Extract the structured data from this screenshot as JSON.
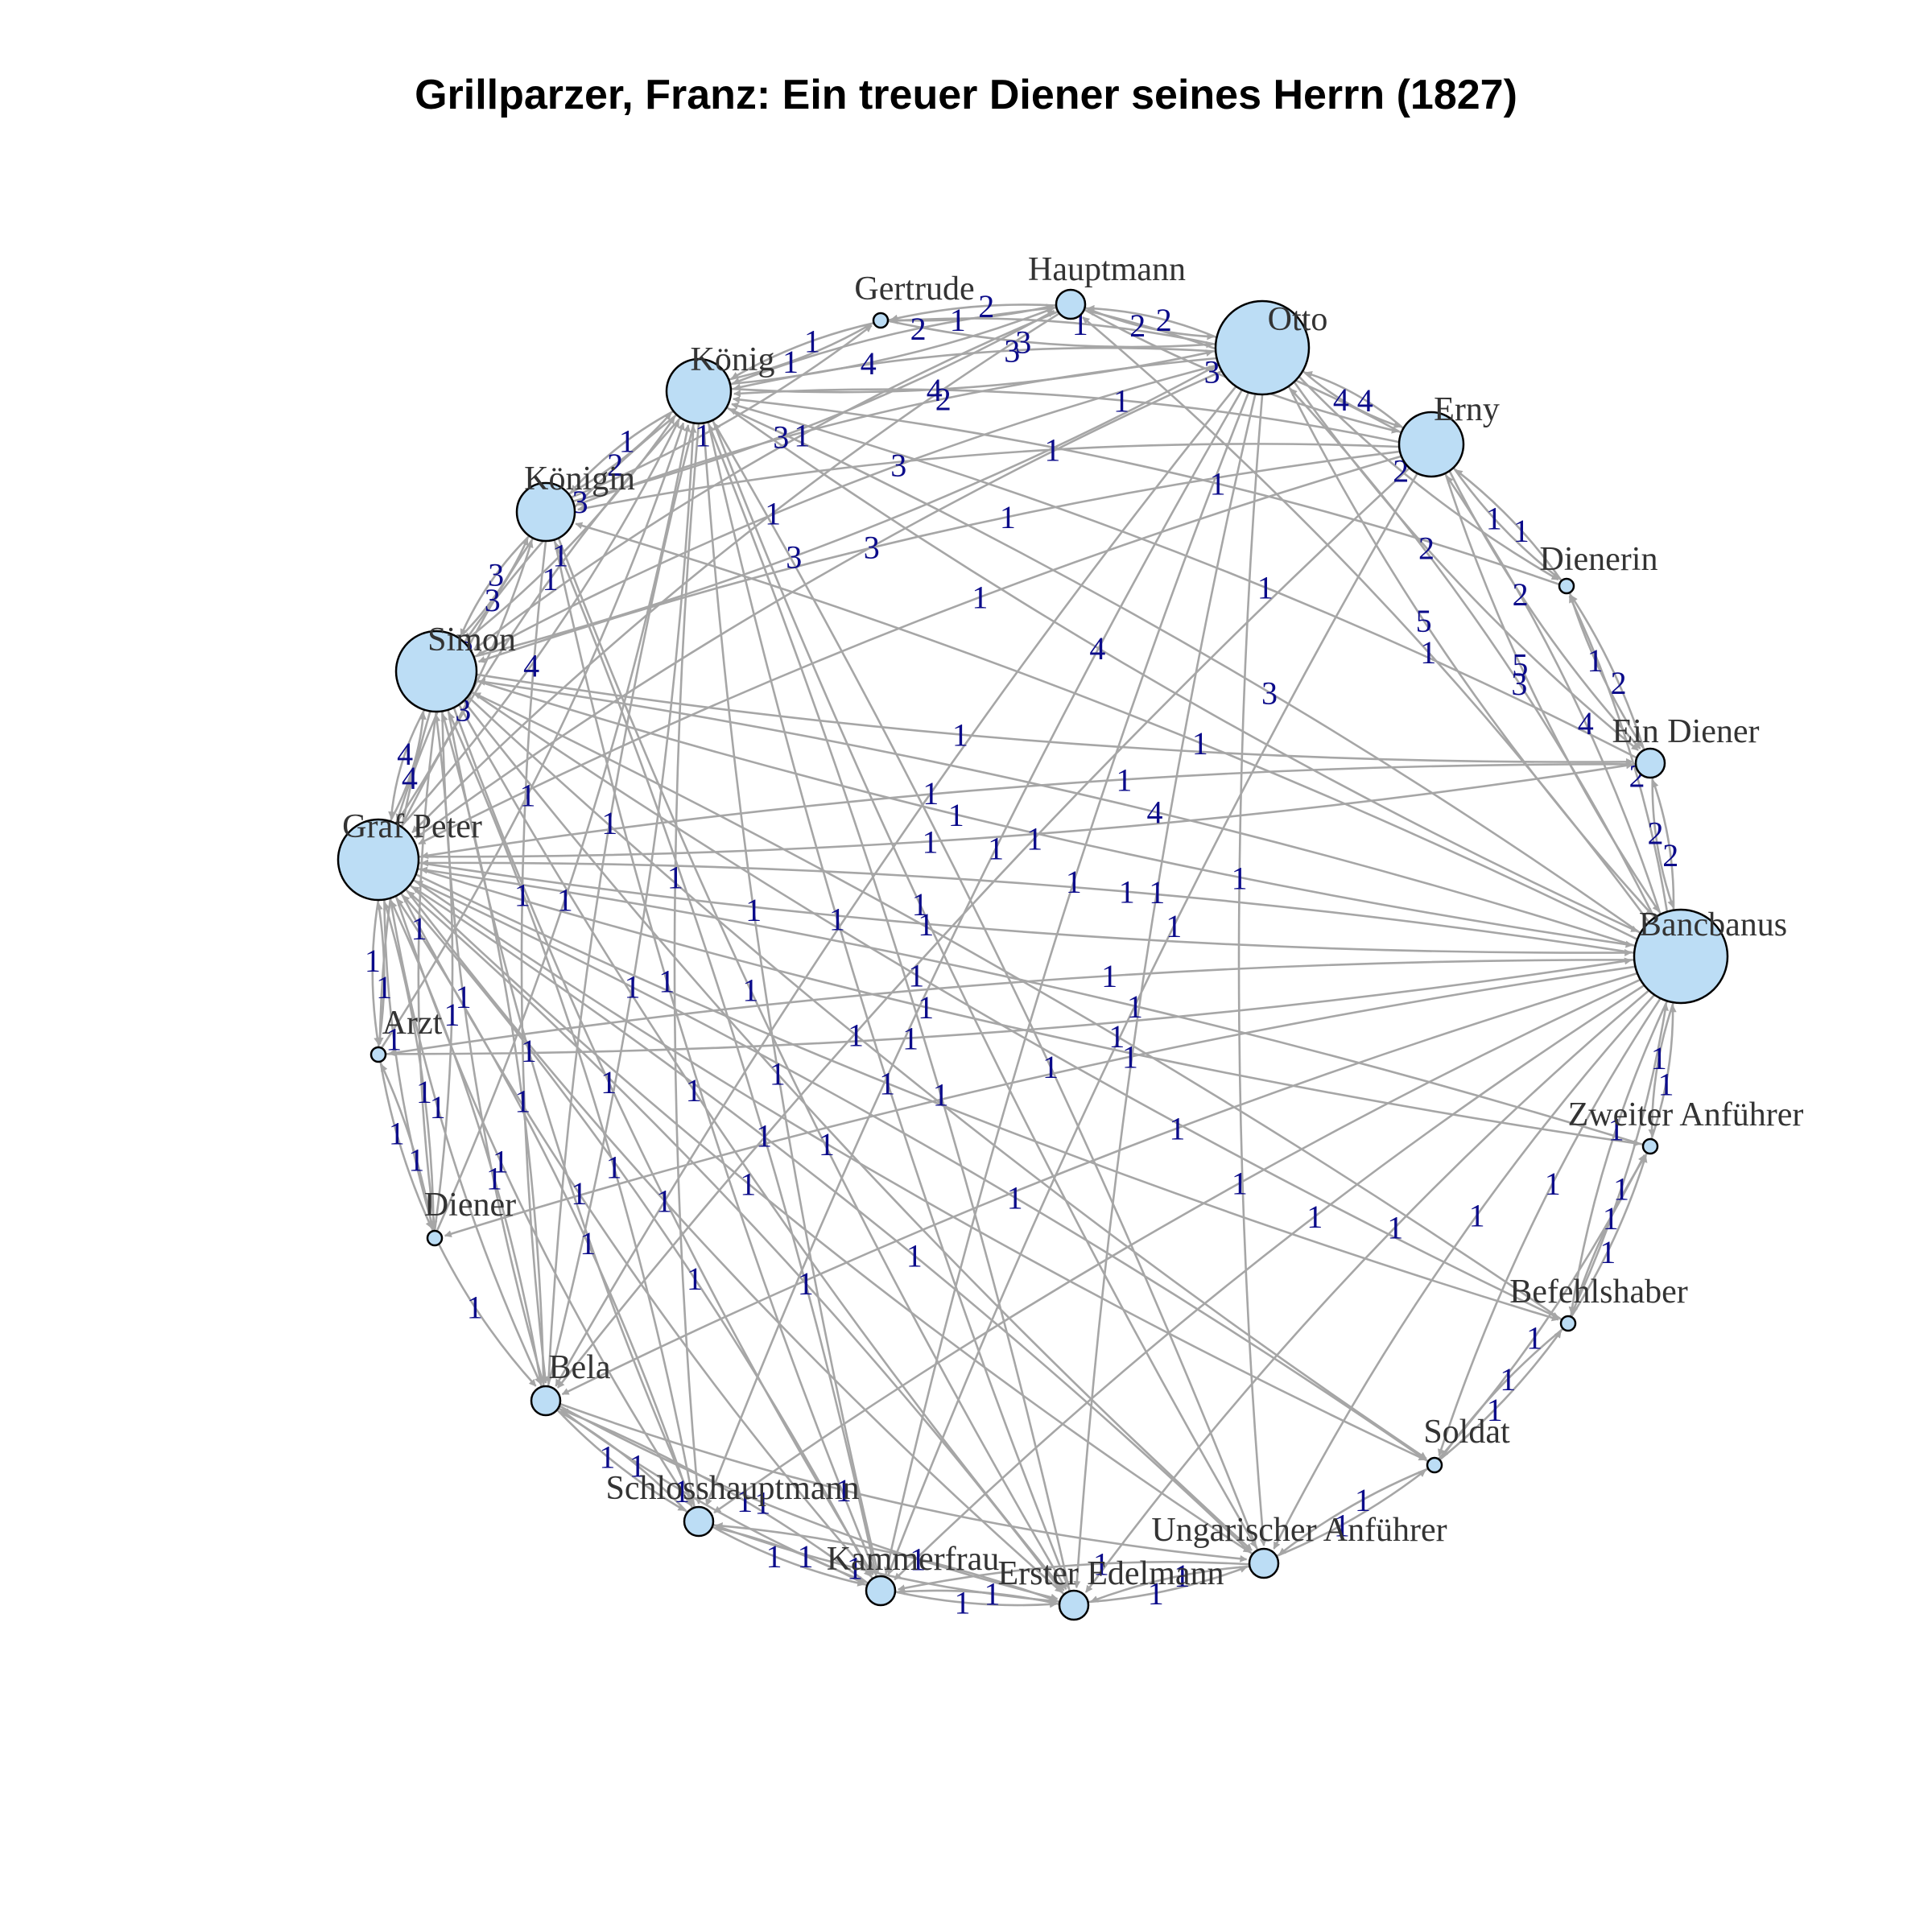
{
  "title": "Grillparzer, Franz: Ein treuer Diener seines Herrn (1827)",
  "colors": {
    "edge": "#a6a6a6",
    "node_fill": "#bcddf5",
    "node_stroke": "#000000",
    "edge_label": "#0b0b8a",
    "node_label": "#333333"
  },
  "nodes": [
    {
      "id": "hauptmann",
      "label": "Hauptmann",
      "size": 1
    },
    {
      "id": "otto",
      "label": "Otto",
      "size": 5
    },
    {
      "id": "erny",
      "label": "Erny",
      "size": 3
    },
    {
      "id": "dienerin",
      "label": "Dienerin",
      "size": 0
    },
    {
      "id": "ein_diener",
      "label": "Ein Diener",
      "size": 1
    },
    {
      "id": "bancbanus",
      "label": "Bancbanus",
      "size": 5
    },
    {
      "id": "zweiter_anfuehrer",
      "label": "Zweiter Anführer",
      "size": 0
    },
    {
      "id": "befehlshaber",
      "label": "Befehlshaber",
      "size": 0
    },
    {
      "id": "soldat",
      "label": "Soldat",
      "size": 0
    },
    {
      "id": "ungarischer_anfuehrer",
      "label": "Ungarischer Anführer",
      "size": 1
    },
    {
      "id": "erster_edelmann",
      "label": "Erster Edelmann",
      "size": 1
    },
    {
      "id": "kammerfrau",
      "label": "Kammerfrau",
      "size": 1
    },
    {
      "id": "schlosshauptmann",
      "label": "Schlosshauptmann",
      "size": 1
    },
    {
      "id": "bela",
      "label": "Bela",
      "size": 1
    },
    {
      "id": "diener",
      "label": "Diener",
      "size": 0
    },
    {
      "id": "arzt",
      "label": "Arzt",
      "size": 0
    },
    {
      "id": "graf_peter",
      "label": "Graf Peter",
      "size": 4
    },
    {
      "id": "simon",
      "label": "Simon",
      "size": 4
    },
    {
      "id": "koenigin",
      "label": "Königin",
      "size": 2
    },
    {
      "id": "koenig",
      "label": "König",
      "size": 3
    },
    {
      "id": "gertrude",
      "label": "Gertrude",
      "size": 0
    }
  ],
  "edges": [
    {
      "from": "otto",
      "to": "erny",
      "weight": "4"
    },
    {
      "from": "erny",
      "to": "otto",
      "weight": "4"
    },
    {
      "from": "otto",
      "to": "hauptmann",
      "weight": "2"
    },
    {
      "from": "hauptmann",
      "to": "otto",
      "weight": "2"
    },
    {
      "from": "otto",
      "to": "koenig",
      "weight": "3"
    },
    {
      "from": "koenig",
      "to": "otto",
      "weight": "4"
    },
    {
      "from": "otto",
      "to": "gertrude",
      "weight": "1"
    },
    {
      "from": "gertrude",
      "to": "otto",
      "weight": "3"
    },
    {
      "from": "otto",
      "to": "bancbanus",
      "weight": "5"
    },
    {
      "from": "bancbanus",
      "to": "otto",
      "weight": "3"
    },
    {
      "from": "otto",
      "to": "ein_diener",
      "weight": "2"
    },
    {
      "from": "otto",
      "to": "dienerin",
      "weight": "2"
    },
    {
      "from": "otto",
      "to": "simon",
      "weight": "3"
    },
    {
      "from": "simon",
      "to": "otto",
      "weight": "3"
    },
    {
      "from": "otto",
      "to": "graf_peter",
      "weight": "3"
    },
    {
      "from": "otto",
      "to": "koenigin",
      "weight": "2"
    },
    {
      "from": "otto",
      "to": "bela",
      "weight": "1"
    },
    {
      "from": "otto",
      "to": "kammerfrau",
      "weight": "1"
    },
    {
      "from": "otto",
      "to": "schlosshauptmann",
      "weight": "1"
    },
    {
      "from": "erny",
      "to": "bancbanus",
      "weight": "5"
    },
    {
      "from": "bancbanus",
      "to": "erny",
      "weight": "4"
    },
    {
      "from": "erny",
      "to": "dienerin",
      "weight": "1"
    },
    {
      "from": "dienerin",
      "to": "erny",
      "weight": "1"
    },
    {
      "from": "erny",
      "to": "ein_diener",
      "weight": "2"
    },
    {
      "from": "erny",
      "to": "koenig",
      "weight": "1"
    },
    {
      "from": "erny",
      "to": "simon",
      "weight": "1"
    },
    {
      "from": "erny",
      "to": "graf_peter",
      "weight": "1"
    },
    {
      "from": "erny",
      "to": "koenigin",
      "weight": "1"
    },
    {
      "from": "erny",
      "to": "hauptmann",
      "weight": "1"
    },
    {
      "from": "hauptmann",
      "to": "erny",
      "weight": "3"
    },
    {
      "from": "bancbanus",
      "to": "ein_diener",
      "weight": "2"
    },
    {
      "from": "ein_diener",
      "to": "bancbanus",
      "weight": "2"
    },
    {
      "from": "bancbanus",
      "to": "dienerin",
      "weight": "2"
    },
    {
      "from": "bancbanus",
      "to": "koenig",
      "weight": "3"
    },
    {
      "from": "koenig",
      "to": "bancbanus",
      "weight": "4"
    },
    {
      "from": "bancbanus",
      "to": "simon",
      "weight": "4"
    },
    {
      "from": "simon",
      "to": "bancbanus",
      "weight": "1"
    },
    {
      "from": "bancbanus",
      "to": "graf_peter",
      "weight": "1"
    },
    {
      "from": "graf_peter",
      "to": "bancbanus",
      "weight": "1"
    },
    {
      "from": "bancbanus",
      "to": "koenigin",
      "weight": "1"
    },
    {
      "from": "bancbanus",
      "to": "zweiter_anfuehrer",
      "weight": "1"
    },
    {
      "from": "bancbanus",
      "to": "befehlshaber",
      "weight": "1"
    },
    {
      "from": "bancbanus",
      "to": "soldat",
      "weight": "1"
    },
    {
      "from": "bancbanus",
      "to": "ungarischer_anfuehrer",
      "weight": "1"
    },
    {
      "from": "bancbanus",
      "to": "arzt",
      "weight": "1"
    },
    {
      "from": "bancbanus",
      "to": "diener",
      "weight": "1"
    },
    {
      "from": "bancbanus",
      "to": "bela",
      "weight": "1"
    },
    {
      "from": "bancbanus",
      "to": "kammerfrau",
      "weight": "1"
    },
    {
      "from": "bancbanus",
      "to": "erster_edelmann",
      "weight": "1"
    },
    {
      "from": "bancbanus",
      "to": "schlosshauptmann",
      "weight": "1"
    },
    {
      "from": "bancbanus",
      "to": "hauptmann",
      "weight": "1"
    },
    {
      "from": "koenig",
      "to": "koenigin",
      "weight": "1"
    },
    {
      "from": "koenigin",
      "to": "koenig",
      "weight": "2"
    },
    {
      "from": "koenig",
      "to": "gertrude",
      "weight": "1"
    },
    {
      "from": "gertrude",
      "to": "koenig",
      "weight": "1"
    },
    {
      "from": "koenig",
      "to": "hauptmann",
      "weight": "4"
    },
    {
      "from": "hauptmann",
      "to": "koenig",
      "weight": "2"
    },
    {
      "from": "koenig",
      "to": "simon",
      "weight": "3"
    },
    {
      "from": "simon",
      "to": "koenig",
      "weight": "1"
    },
    {
      "from": "koenig",
      "to": "graf_peter",
      "weight": "1"
    },
    {
      "from": "graf_peter",
      "to": "koenig",
      "weight": "4"
    },
    {
      "from": "koenig",
      "to": "erster_edelmann",
      "weight": "1"
    },
    {
      "from": "koenig",
      "to": "bela",
      "weight": "1"
    },
    {
      "from": "koenig",
      "to": "ungarischer_anfuehrer",
      "weight": "1"
    },
    {
      "from": "koenigin",
      "to": "simon",
      "weight": "3"
    },
    {
      "from": "simon",
      "to": "koenigin",
      "weight": "3"
    },
    {
      "from": "koenigin",
      "to": "graf_peter",
      "weight": "2"
    },
    {
      "from": "graf_peter",
      "to": "koenigin",
      "weight": "3"
    },
    {
      "from": "koenigin",
      "to": "gertrude",
      "weight": "1"
    },
    {
      "from": "koenigin",
      "to": "hauptmann",
      "weight": "3"
    },
    {
      "from": "koenigin",
      "to": "kammerfrau",
      "weight": "1"
    },
    {
      "from": "koenigin",
      "to": "bela",
      "weight": "1"
    },
    {
      "from": "simon",
      "to": "graf_peter",
      "weight": "4"
    },
    {
      "from": "graf_peter",
      "to": "simon",
      "weight": "4"
    },
    {
      "from": "simon",
      "to": "arzt",
      "weight": "1"
    },
    {
      "from": "simon",
      "to": "diener",
      "weight": "1"
    },
    {
      "from": "simon",
      "to": "bela",
      "weight": "1"
    },
    {
      "from": "simon",
      "to": "kammerfrau",
      "weight": "1"
    },
    {
      "from": "simon",
      "to": "schlosshauptmann",
      "weight": "1"
    },
    {
      "from": "simon",
      "to": "erster_edelmann",
      "weight": "1"
    },
    {
      "from": "simon",
      "to": "ungarischer_anfuehrer",
      "weight": "1"
    },
    {
      "from": "simon",
      "to": "ein_diener",
      "weight": "1"
    },
    {
      "from": "simon",
      "to": "soldat",
      "weight": "1"
    },
    {
      "from": "graf_peter",
      "to": "arzt",
      "weight": "1"
    },
    {
      "from": "arzt",
      "to": "graf_peter",
      "weight": "1"
    },
    {
      "from": "graf_peter",
      "to": "diener",
      "weight": "1"
    },
    {
      "from": "diener",
      "to": "graf_peter",
      "weight": "1"
    },
    {
      "from": "graf_peter",
      "to": "bela",
      "weight": "1"
    },
    {
      "from": "graf_peter",
      "to": "schlosshauptmann",
      "weight": "1"
    },
    {
      "from": "graf_peter",
      "to": "kammerfrau",
      "weight": "1"
    },
    {
      "from": "graf_peter",
      "to": "erster_edelmann",
      "weight": "1"
    },
    {
      "from": "graf_peter",
      "to": "ungarischer_anfuehrer",
      "weight": "1"
    },
    {
      "from": "graf_peter",
      "to": "soldat",
      "weight": "1"
    },
    {
      "from": "graf_peter",
      "to": "befehlshaber",
      "weight": "1"
    },
    {
      "from": "graf_peter",
      "to": "zweiter_anfuehrer",
      "weight": "1"
    },
    {
      "from": "graf_peter",
      "to": "ein_diener",
      "weight": "1"
    },
    {
      "from": "arzt",
      "to": "diener",
      "weight": "1"
    },
    {
      "from": "diener",
      "to": "arzt",
      "weight": "1"
    },
    {
      "from": "arzt",
      "to": "bancbanus",
      "weight": "1"
    },
    {
      "from": "diener",
      "to": "bela",
      "weight": "1"
    },
    {
      "from": "bela",
      "to": "schlosshauptmann",
      "weight": "1"
    },
    {
      "from": "schlosshauptmann",
      "to": "bela",
      "weight": "1"
    },
    {
      "from": "bela",
      "to": "kammerfrau",
      "weight": "1"
    },
    {
      "from": "kammerfrau",
      "to": "bela",
      "weight": "1"
    },
    {
      "from": "bela",
      "to": "erster_edelmann",
      "weight": "1"
    },
    {
      "from": "bela",
      "to": "ungarischer_anfuehrer",
      "weight": "1"
    },
    {
      "from": "bela",
      "to": "koenig",
      "weight": "1"
    },
    {
      "from": "schlosshauptmann",
      "to": "kammerfrau",
      "weight": "1"
    },
    {
      "from": "kammerfrau",
      "to": "schlosshauptmann",
      "weight": "1"
    },
    {
      "from": "schlosshauptmann",
      "to": "erster_edelmann",
      "weight": "1"
    },
    {
      "from": "erster_edelmann",
      "to": "schlosshauptmann",
      "weight": "1"
    },
    {
      "from": "kammerfrau",
      "to": "erster_edelmann",
      "weight": "1"
    },
    {
      "from": "erster_edelmann",
      "to": "kammerfrau",
      "weight": "1"
    },
    {
      "from": "erster_edelmann",
      "to": "ungarischer_anfuehrer",
      "weight": "1"
    },
    {
      "from": "ungarischer_anfuehrer",
      "to": "erster_edelmann",
      "weight": "1"
    },
    {
      "from": "ungarischer_anfuehrer",
      "to": "kammerfrau",
      "weight": "1"
    },
    {
      "from": "ungarischer_anfuehrer",
      "to": "soldat",
      "weight": "1"
    },
    {
      "from": "soldat",
      "to": "ungarischer_anfuehrer",
      "weight": "1"
    },
    {
      "from": "soldat",
      "to": "befehlshaber",
      "weight": "1"
    },
    {
      "from": "befehlshaber",
      "to": "soldat",
      "weight": "1"
    },
    {
      "from": "soldat",
      "to": "zweiter_anfuehrer",
      "weight": "1"
    },
    {
      "from": "befehlshaber",
      "to": "zweiter_anfuehrer",
      "weight": "1"
    },
    {
      "from": "zweiter_anfuehrer",
      "to": "befehlshaber",
      "weight": "1"
    },
    {
      "from": "befehlshaber",
      "to": "bancbanus",
      "weight": "1"
    },
    {
      "from": "zweiter_anfuehrer",
      "to": "bancbanus",
      "weight": "1"
    },
    {
      "from": "ein_diener",
      "to": "dienerin",
      "weight": "2"
    },
    {
      "from": "dienerin",
      "to": "ein_diener",
      "weight": "1"
    },
    {
      "from": "hauptmann",
      "to": "gertrude",
      "weight": "2"
    },
    {
      "from": "gertrude",
      "to": "hauptmann",
      "weight": "1"
    },
    {
      "from": "hauptmann",
      "to": "simon",
      "weight": "1"
    },
    {
      "from": "hauptmann",
      "to": "graf_peter",
      "weight": "1"
    },
    {
      "from": "ungarischer_anfuehrer",
      "to": "koenig",
      "weight": "1"
    },
    {
      "from": "ungarischer_anfuehrer",
      "to": "graf_peter",
      "weight": "1"
    },
    {
      "from": "erster_edelmann",
      "to": "graf_peter",
      "weight": "1"
    },
    {
      "from": "kammerfrau",
      "to": "koenigin",
      "weight": "1"
    },
    {
      "from": "kammerfrau",
      "to": "graf_peter",
      "weight": "1"
    },
    {
      "from": "schlosshauptmann",
      "to": "simon",
      "weight": "1"
    },
    {
      "from": "schlosshauptmann",
      "to": "graf_peter",
      "weight": "1"
    },
    {
      "from": "bela",
      "to": "simon",
      "weight": "1"
    },
    {
      "from": "bela",
      "to": "graf_peter",
      "weight": "1"
    },
    {
      "from": "diener",
      "to": "simon",
      "weight": "1"
    },
    {
      "from": "soldat",
      "to": "graf_peter",
      "weight": "1"
    },
    {
      "from": "erny",
      "to": "bela",
      "weight": "1"
    },
    {
      "from": "erny",
      "to": "kammerfrau",
      "weight": "1"
    },
    {
      "from": "otto",
      "to": "erster_edelmann",
      "weight": "1"
    },
    {
      "from": "otto",
      "to": "ungarischer_anfuehrer",
      "weight": "1"
    },
    {
      "from": "koenig",
      "to": "kammerfrau",
      "weight": "1"
    },
    {
      "from": "koenig",
      "to": "schlosshauptmann",
      "weight": "1"
    },
    {
      "from": "koenigin",
      "to": "erster_edelmann",
      "weight": "1"
    },
    {
      "from": "simon",
      "to": "befehlshaber",
      "weight": "1"
    },
    {
      "from": "ein_diener",
      "to": "koenig",
      "weight": "1"
    },
    {
      "from": "ein_diener",
      "to": "graf_peter",
      "weight": "1"
    },
    {
      "from": "dienerin",
      "to": "koenig",
      "weight": "1"
    },
    {
      "from": "zweiter_anfuehrer",
      "to": "graf_peter",
      "weight": "1"
    },
    {
      "from": "befehlshaber",
      "to": "simon",
      "weight": "1"
    },
    {
      "from": "erster_edelmann",
      "to": "koenig",
      "weight": "1"
    },
    {
      "from": "diener",
      "to": "koenig",
      "weight": "1"
    },
    {
      "from": "arzt",
      "to": "koenig",
      "weight": "1"
    }
  ]
}
